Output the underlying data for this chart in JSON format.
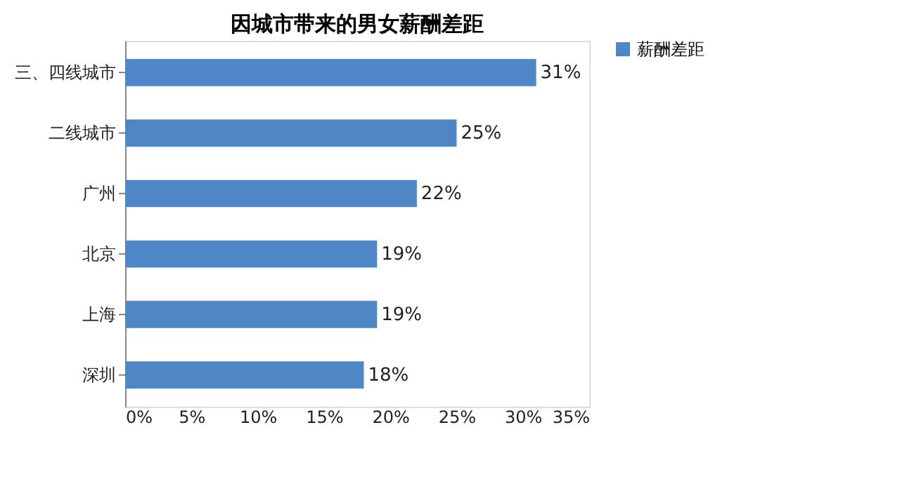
{
  "chart_data": {
    "type": "bar",
    "orientation": "horizontal",
    "title": "因城市带来的男女薪酬差距",
    "categories": [
      "三、四线城市",
      "二线城市",
      "广州",
      "北京",
      "上海",
      "深圳"
    ],
    "series": [
      {
        "name": "薪酬差距",
        "color": "#4f86c6",
        "values": [
          31,
          25,
          22,
          19,
          19,
          18
        ],
        "value_labels": [
          "31%",
          "25%",
          "22%",
          "19%",
          "19%",
          "18%"
        ]
      }
    ],
    "xlim": [
      0,
      35
    ],
    "xticks": [
      {
        "value": 0,
        "label": "0%"
      },
      {
        "value": 5,
        "label": "5%"
      },
      {
        "value": 10,
        "label": "10%"
      },
      {
        "value": 15,
        "label": "15%"
      },
      {
        "value": 20,
        "label": "20%"
      },
      {
        "value": 25,
        "label": "25%"
      },
      {
        "value": 30,
        "label": "30%"
      },
      {
        "value": 35,
        "label": "35%"
      }
    ],
    "grid": false,
    "legend": "right"
  }
}
